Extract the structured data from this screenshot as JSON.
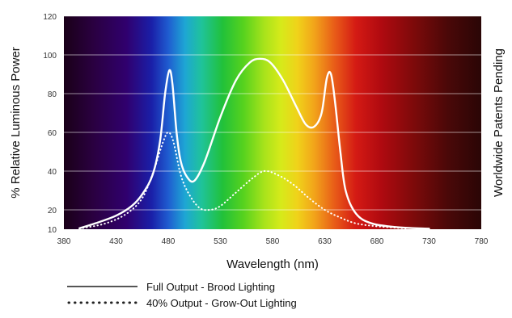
{
  "chart_data": {
    "type": "line",
    "xlabel": "Wavelength (nm)",
    "ylabel": "% Relative Luminous Power",
    "right_label": "Worldwide Patents Pending",
    "xlim": [
      380,
      780
    ],
    "ylim": [
      10,
      120
    ],
    "x_ticks": [
      "380",
      "430",
      "480",
      "530",
      "580",
      "630",
      "680",
      "730",
      "780"
    ],
    "y_ticks": [
      "10",
      "20",
      "40",
      "60",
      "80",
      "100",
      "120"
    ],
    "grid": true,
    "background": "visible spectrum gradient",
    "legend_position": "bottom-left",
    "series": [
      {
        "name": "Full Output - Brood Lighting",
        "style": "solid",
        "color": "#ffffff",
        "points": [
          [
            395,
            10.5
          ],
          [
            410,
            13
          ],
          [
            430,
            17
          ],
          [
            445,
            22
          ],
          [
            455,
            28
          ],
          [
            465,
            38
          ],
          [
            472,
            55
          ],
          [
            477,
            80
          ],
          [
            481,
            92
          ],
          [
            484,
            85
          ],
          [
            488,
            60
          ],
          [
            492,
            45
          ],
          [
            498,
            37
          ],
          [
            505,
            35
          ],
          [
            515,
            45
          ],
          [
            530,
            68
          ],
          [
            545,
            87
          ],
          [
            558,
            96
          ],
          [
            568,
            98
          ],
          [
            578,
            96
          ],
          [
            590,
            87
          ],
          [
            603,
            73
          ],
          [
            612,
            64
          ],
          [
            620,
            63
          ],
          [
            627,
            70
          ],
          [
            632,
            88
          ],
          [
            636,
            90
          ],
          [
            640,
            75
          ],
          [
            645,
            50
          ],
          [
            650,
            30
          ],
          [
            660,
            18
          ],
          [
            675,
            13
          ],
          [
            700,
            11
          ],
          [
            730,
            10.3
          ]
        ]
      },
      {
        "name": "40% Output - Grow-Out Lighting",
        "style": "dotted",
        "color": "#ffffff",
        "points": [
          [
            395,
            10.3
          ],
          [
            420,
            13
          ],
          [
            440,
            18
          ],
          [
            455,
            26
          ],
          [
            466,
            40
          ],
          [
            475,
            55
          ],
          [
            480,
            60
          ],
          [
            485,
            55
          ],
          [
            492,
            38
          ],
          [
            500,
            28
          ],
          [
            510,
            21
          ],
          [
            520,
            20
          ],
          [
            530,
            22
          ],
          [
            545,
            29
          ],
          [
            560,
            36
          ],
          [
            572,
            40
          ],
          [
            585,
            38
          ],
          [
            600,
            33
          ],
          [
            615,
            26
          ],
          [
            630,
            20
          ],
          [
            645,
            16
          ],
          [
            660,
            13
          ],
          [
            680,
            11.5
          ],
          [
            710,
            10.3
          ]
        ]
      }
    ]
  }
}
